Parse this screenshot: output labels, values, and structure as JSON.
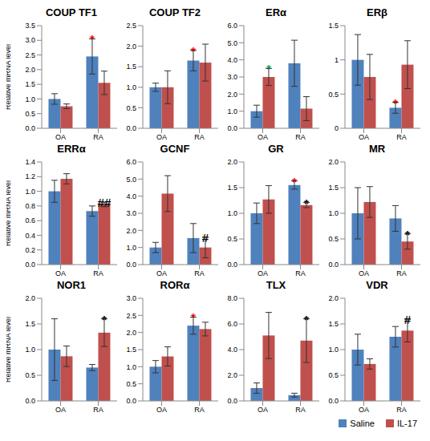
{
  "chart_data": [
    {
      "type": "bar",
      "title": "COUP TF1",
      "y_label": "Relative mRNA level",
      "categories": [
        "OA",
        "RA"
      ],
      "series": [
        {
          "name": "Saline",
          "color": "#4F81BD",
          "values": [
            1.0,
            2.45
          ],
          "errors": [
            0.18,
            0.6
          ]
        },
        {
          "name": "IL-17",
          "color": "#C0504D",
          "values": [
            0.75,
            1.55
          ],
          "errors": [
            0.08,
            0.4
          ]
        }
      ],
      "ylim": [
        0,
        3.5
      ],
      "yticks": [
        {
          "value": 0,
          "label": "0.0"
        },
        0.5,
        {
          "value": 1,
          "label": "1.0"
        },
        1.5,
        {
          "value": 2,
          "label": "2.0"
        },
        2.5,
        {
          "value": 3,
          "label": "3.0"
        },
        3.5
      ],
      "annotations": [
        {
          "category": "RA",
          "series": "Saline",
          "text": "*",
          "color": "#FF0000"
        }
      ]
    },
    {
      "type": "bar",
      "title": "COUP TF2",
      "categories": [
        "OA",
        "RA"
      ],
      "series": [
        {
          "name": "Saline",
          "color": "#4F81BD",
          "values": [
            1.0,
            1.65
          ],
          "errors": [
            0.1,
            0.25
          ]
        },
        {
          "name": "IL-17",
          "color": "#C0504D",
          "values": [
            1.0,
            1.6
          ],
          "errors": [
            0.4,
            0.45
          ]
        }
      ],
      "ylim": [
        0,
        2.5
      ],
      "yticks": [
        {
          "value": 0,
          "label": "0.0"
        },
        0.5,
        {
          "value": 1,
          "label": "1.0"
        },
        1.5,
        {
          "value": 2,
          "label": "2.0"
        },
        2.5
      ],
      "annotations": [
        {
          "category": "RA",
          "series": "Saline",
          "text": "*",
          "color": "#FF0000"
        }
      ]
    },
    {
      "type": "bar",
      "title": "ERα",
      "categories": [
        "OA",
        "RA"
      ],
      "series": [
        {
          "name": "Saline",
          "color": "#4F81BD",
          "values": [
            1.0,
            3.8
          ],
          "errors": [
            0.35,
            1.35
          ]
        },
        {
          "name": "IL-17",
          "color": "#C0504D",
          "values": [
            3.0,
            1.15
          ],
          "errors": [
            0.5,
            0.7
          ]
        }
      ],
      "ylim": [
        0,
        6
      ],
      "yticks": [
        {
          "value": 0,
          "label": "0.0"
        },
        {
          "value": 1,
          "label": "1.0"
        },
        {
          "value": 2,
          "label": "2.0"
        },
        {
          "value": 3,
          "label": "3.0"
        },
        {
          "value": 4,
          "label": "4.0"
        },
        {
          "value": 5,
          "label": "5.0"
        },
        {
          "value": 6,
          "label": "6.0"
        }
      ],
      "annotations": [
        {
          "category": "OA",
          "series": "IL-17",
          "text": "*",
          "color": "#00B050"
        }
      ]
    },
    {
      "type": "bar",
      "title": "ERβ",
      "categories": [
        "OA",
        "RA"
      ],
      "series": [
        {
          "name": "Saline",
          "color": "#4F81BD",
          "values": [
            1.0,
            0.3
          ],
          "errors": [
            0.37,
            0.08
          ]
        },
        {
          "name": "IL-17",
          "color": "#C0504D",
          "values": [
            0.75,
            0.93
          ],
          "errors": [
            0.33,
            0.35
          ]
        }
      ],
      "ylim": [
        0,
        1.5
      ],
      "yticks": [
        0,
        0.5,
        1,
        1.5
      ],
      "annotations": [
        {
          "category": "RA",
          "series": "Saline",
          "text": "*",
          "color": "#FF0000"
        }
      ]
    },
    {
      "type": "bar",
      "title": "ERRα",
      "y_label": "Relative mRNA level",
      "categories": [
        "OA",
        "RA"
      ],
      "series": [
        {
          "name": "Saline",
          "color": "#4F81BD",
          "values": [
            1.0,
            0.73
          ],
          "errors": [
            0.15,
            0.07
          ]
        },
        {
          "name": "IL-17",
          "color": "#C0504D",
          "values": [
            1.17,
            0.82
          ],
          "errors": [
            0.07,
            0.03
          ]
        }
      ],
      "ylim": [
        0,
        1.4
      ],
      "yticks": [
        {
          "value": 0,
          "label": "0.0"
        },
        0.2,
        0.4,
        0.6,
        0.8,
        {
          "value": 1,
          "label": "1.0"
        },
        1.2,
        1.4
      ],
      "annotations": [
        {
          "category": "RA",
          "series": "IL-17",
          "text": "##",
          "color": "#000000"
        }
      ]
    },
    {
      "type": "bar",
      "title": "GCNF",
      "categories": [
        "OA",
        "RA"
      ],
      "series": [
        {
          "name": "Saline",
          "color": "#4F81BD",
          "values": [
            1.0,
            1.55
          ],
          "errors": [
            0.3,
            0.85
          ]
        },
        {
          "name": "IL-17",
          "color": "#C0504D",
          "values": [
            4.15,
            1.0
          ],
          "errors": [
            1.05,
            0.6
          ]
        }
      ],
      "ylim": [
        0,
        6
      ],
      "yticks": [
        {
          "value": 0,
          "label": "0.0"
        },
        {
          "value": 1,
          "label": "1.0"
        },
        {
          "value": 2,
          "label": "2.0"
        },
        {
          "value": 3,
          "label": "3.0"
        },
        {
          "value": 4,
          "label": "4.0"
        },
        {
          "value": 5,
          "label": "5.0"
        },
        {
          "value": 6,
          "label": "6.0"
        }
      ],
      "annotations": [
        {
          "category": "RA",
          "series": "IL-17",
          "text": "#",
          "color": "#000000"
        }
      ]
    },
    {
      "type": "bar",
      "title": "GR",
      "categories": [
        "OA",
        "RA"
      ],
      "series": [
        {
          "name": "Saline",
          "color": "#4F81BD",
          "values": [
            1.0,
            1.55
          ],
          "errors": [
            0.2,
            0.08
          ]
        },
        {
          "name": "IL-17",
          "color": "#C0504D",
          "values": [
            1.27,
            1.16
          ],
          "errors": [
            0.27,
            0.05
          ]
        }
      ],
      "ylim": [
        0,
        2
      ],
      "yticks": [
        {
          "value": 0,
          "label": "0.0"
        },
        0.5,
        {
          "value": 1,
          "label": "1.0"
        },
        1.5,
        {
          "value": 2,
          "label": "2.0"
        }
      ],
      "annotations": [
        {
          "category": "RA",
          "series": "Saline",
          "text": "*",
          "color": "#FF0000"
        },
        {
          "category": "RA",
          "series": "IL-17",
          "text": "*",
          "color": "#000000"
        }
      ]
    },
    {
      "type": "bar",
      "title": "MR",
      "categories": [
        "OA",
        "RA"
      ],
      "series": [
        {
          "name": "Saline",
          "color": "#4F81BD",
          "values": [
            1.0,
            0.9
          ],
          "errors": [
            0.5,
            0.25
          ]
        },
        {
          "name": "IL-17",
          "color": "#C0504D",
          "values": [
            1.22,
            0.45
          ],
          "errors": [
            0.3,
            0.15
          ]
        }
      ],
      "ylim": [
        0,
        2
      ],
      "yticks": [
        {
          "value": 0,
          "label": "0.0"
        },
        0.5,
        {
          "value": 1,
          "label": "1.0"
        },
        1.5,
        {
          "value": 2,
          "label": "2.0"
        }
      ],
      "annotations": [
        {
          "category": "RA",
          "series": "IL-17",
          "text": "*",
          "color": "#000000"
        }
      ]
    },
    {
      "type": "bar",
      "title": "NOR1",
      "y_label": "Relative mRNA level",
      "categories": [
        "OA",
        "RA"
      ],
      "series": [
        {
          "name": "Saline",
          "color": "#4F81BD",
          "values": [
            1.0,
            0.65
          ],
          "errors": [
            0.6,
            0.06
          ]
        },
        {
          "name": "IL-17",
          "color": "#C0504D",
          "values": [
            0.87,
            1.33
          ],
          "errors": [
            0.2,
            0.27
          ]
        }
      ],
      "ylim": [
        0,
        2
      ],
      "yticks": [
        {
          "value": 0,
          "label": "0.0"
        },
        0.5,
        {
          "value": 1,
          "label": "1.0"
        },
        1.5,
        {
          "value": 2,
          "label": "2.0"
        }
      ],
      "annotations": [
        {
          "category": "RA",
          "series": "IL-17",
          "text": "*",
          "color": "#000000"
        }
      ]
    },
    {
      "type": "bar",
      "title": "RORα",
      "categories": [
        "OA",
        "RA"
      ],
      "series": [
        {
          "name": "Saline",
          "color": "#4F81BD",
          "values": [
            1.0,
            2.2
          ],
          "errors": [
            0.18,
            0.25
          ]
        },
        {
          "name": "IL-17",
          "color": "#C0504D",
          "values": [
            1.3,
            2.1
          ],
          "errors": [
            0.28,
            0.2
          ]
        }
      ],
      "ylim": [
        0,
        3
      ],
      "yticks": [
        {
          "value": 0,
          "label": "0.0"
        },
        0.5,
        {
          "value": 1,
          "label": "1.0"
        },
        1.5,
        {
          "value": 2,
          "label": "2.0"
        },
        2.5,
        {
          "value": 3,
          "label": "3.0"
        }
      ],
      "annotations": [
        {
          "category": "RA",
          "series": "Saline",
          "text": "*",
          "color": "#FF0000"
        }
      ]
    },
    {
      "type": "bar",
      "title": "TLX",
      "categories": [
        "OA",
        "RA"
      ],
      "series": [
        {
          "name": "Saline",
          "color": "#4F81BD",
          "values": [
            1.0,
            0.45
          ],
          "errors": [
            0.4,
            0.15
          ]
        },
        {
          "name": "IL-17",
          "color": "#C0504D",
          "values": [
            5.1,
            4.7
          ],
          "errors": [
            1.8,
            1.7
          ]
        }
      ],
      "ylim": [
        0,
        8
      ],
      "yticks": [
        {
          "value": 0,
          "label": "0.0"
        },
        {
          "value": 2,
          "label": "2.0"
        },
        {
          "value": 4,
          "label": "4.0"
        },
        {
          "value": 6,
          "label": "6.0"
        },
        {
          "value": 8,
          "label": "8.0"
        }
      ],
      "annotations": [
        {
          "category": "RA",
          "series": "IL-17",
          "text": "*",
          "color": "#000000"
        }
      ]
    },
    {
      "type": "bar",
      "title": "VDR",
      "legend": "bottom-right",
      "categories": [
        "OA",
        "RA"
      ],
      "series": [
        {
          "name": "Saline",
          "color": "#4F81BD",
          "values": [
            1.0,
            1.25
          ],
          "errors": [
            0.3,
            0.2
          ]
        },
        {
          "name": "IL-17",
          "color": "#C0504D",
          "values": [
            0.72,
            1.37
          ],
          "errors": [
            0.1,
            0.22
          ]
        }
      ],
      "ylim": [
        0,
        2
      ],
      "yticks": [
        {
          "value": 0,
          "label": "0.0"
        },
        0.5,
        {
          "value": 1,
          "label": "1.0"
        },
        1.5,
        {
          "value": 2,
          "label": "2.0"
        }
      ],
      "annotations": [
        {
          "category": "RA",
          "series": "IL-17",
          "text": "#",
          "color": "#000000"
        }
      ]
    }
  ]
}
